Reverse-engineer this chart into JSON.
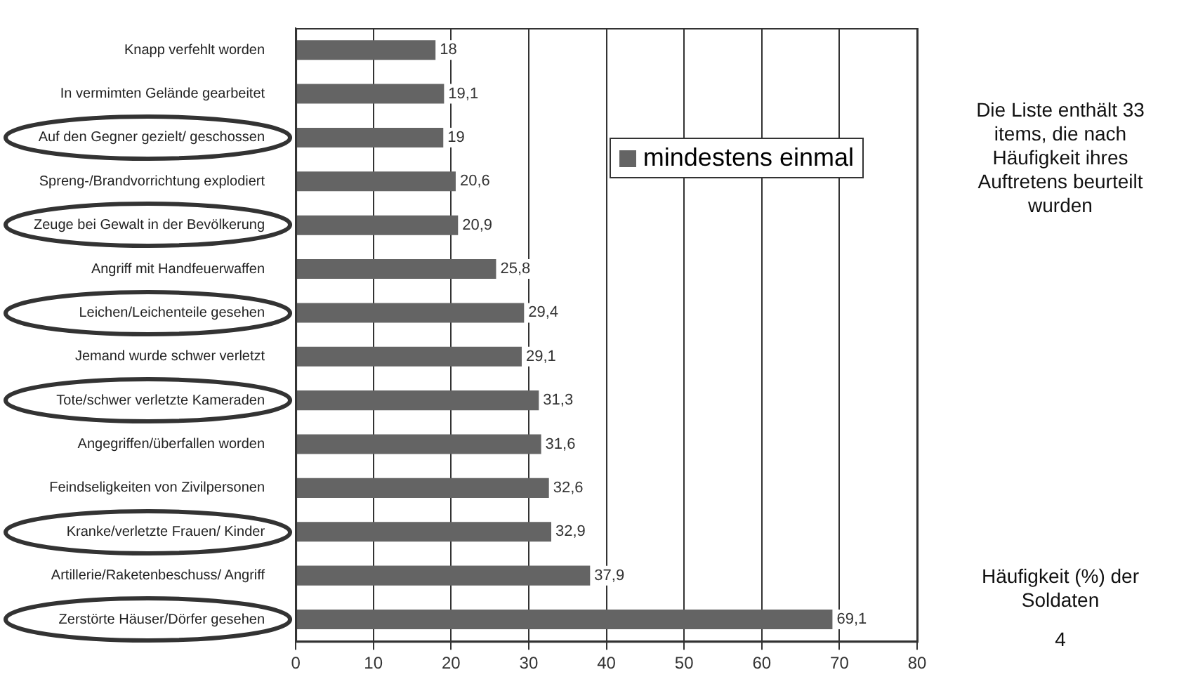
{
  "chart_data": {
    "type": "bar",
    "orientation": "horizontal",
    "categories": [
      "Knapp verfehlt worden",
      "In vermimten Gelände gearbeitet",
      "Auf den Gegner gezielt/ geschossen",
      "Spreng-/Brandvorrichtung explodiert",
      "Zeuge bei Gewalt in der Bevölkerung",
      "Angriff mit Handfeuerwaffen",
      "Leichen/Leichenteile gesehen",
      "Jemand wurde schwer verletzt",
      "Tote/schwer verletzte Kameraden",
      "Angegriffen/überfallen worden",
      "Feindseligkeiten von Zivilpersonen",
      "Kranke/verletzte Frauen/ Kinder",
      "Artillerie/Raketenbeschuss/ Angriff",
      "Zerstörte Häuser/Dörfer gesehen"
    ],
    "series": [
      {
        "name": "mindestens einmal",
        "color": "#646464",
        "values": [
          18,
          19.1,
          19,
          20.6,
          20.9,
          25.8,
          29.4,
          29.1,
          31.3,
          31.6,
          32.6,
          32.9,
          37.9,
          69.1
        ],
        "value_labels": [
          "18",
          "19,1",
          "19",
          "20,6",
          "20,9",
          "25,8",
          "29,4",
          "29,1",
          "31,3",
          "31,6",
          "32,6",
          "32,9",
          "37,9",
          "69,1"
        ]
      }
    ],
    "xlim": [
      0,
      80
    ],
    "xticks": [
      0,
      10,
      20,
      30,
      40,
      50,
      60,
      70,
      80
    ],
    "grid": "x",
    "legend": "top right",
    "annotations": [
      "Die Liste enthält 33 items, die nach Häufigkeit ihres Auftretens beurteilt wurden",
      "Häufigkeit (%) der Soldaten",
      "4"
    ]
  }
}
